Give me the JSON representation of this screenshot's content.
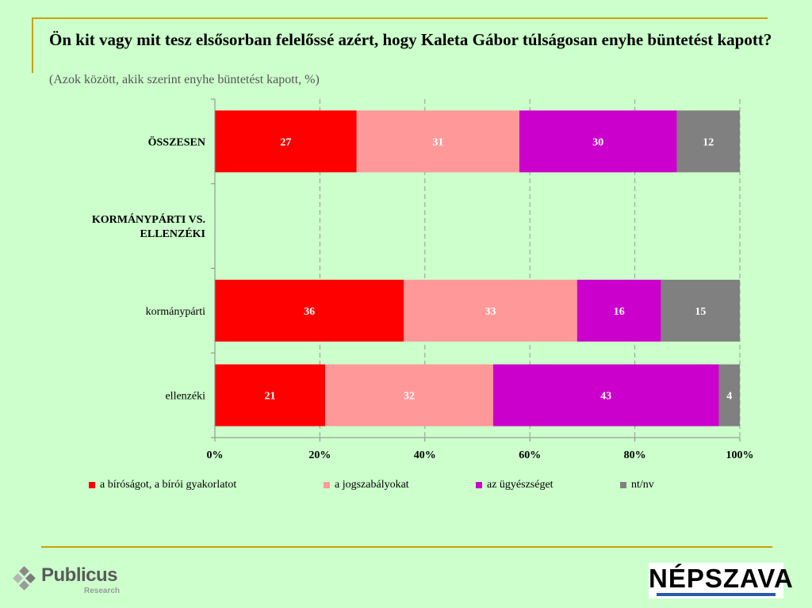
{
  "header": {
    "title": "Ön kit vagy mit tesz elsősorban felelőssé azért, hogy Kaleta Gábor túlságosan enyhe büntetést kapott?",
    "subtitle": "(Azok között, akik szerint enyhe büntetést kapott, %)"
  },
  "chart_data": {
    "type": "bar",
    "orientation": "horizontal",
    "stacked": true,
    "categories": [
      "ÖSSZESEN",
      "KORMÁNYPÁRTI VS. ELLENZÉKI",
      "kormánypárti",
      "ellenzéki"
    ],
    "category_bold": [
      true,
      true,
      false,
      false
    ],
    "series": [
      {
        "name": "a bíróságot, a bírói gyakorlatot",
        "color": "#ff0000",
        "values": [
          27,
          null,
          36,
          21
        ]
      },
      {
        "name": "a jogszabályokat",
        "color": "#ff9999",
        "values": [
          31,
          null,
          33,
          32
        ]
      },
      {
        "name": "az ügyészséget",
        "color": "#cc00cc",
        "values": [
          30,
          null,
          16,
          43
        ]
      },
      {
        "name": "nt/nv",
        "color": "#808080",
        "values": [
          12,
          null,
          15,
          4
        ]
      }
    ],
    "xticks": [
      "0%",
      "20%",
      "40%",
      "60%",
      "80%",
      "100%"
    ],
    "xlim": [
      0,
      100
    ],
    "grid": "vertical dashed",
    "legend_position": "bottom"
  },
  "logos": {
    "left": {
      "name": "Publicus",
      "sub": "Research"
    },
    "right": {
      "name": "NÉPSZAVA"
    }
  }
}
